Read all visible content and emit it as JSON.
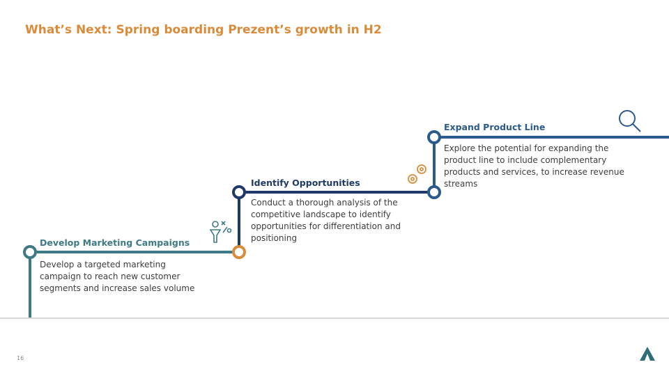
{
  "header": {
    "title": "What’s Next: Spring boarding Prezent’s growth in H2"
  },
  "steps": [
    {
      "title": "Develop Marketing Campaigns",
      "text": "Develop a targeted marketing campaign to reach new customer segments and increase sales volume"
    },
    {
      "title": "Identify Opportunities",
      "text": "Conduct a thorough analysis of the competitive landscape to identify opportunities for differentiation and positioning"
    },
    {
      "title": "Expand Product Line",
      "text": "Explore the potential for expanding the product line to include complementary products and services, to increase revenue streams"
    }
  ],
  "footer": {
    "page_number": "16"
  }
}
